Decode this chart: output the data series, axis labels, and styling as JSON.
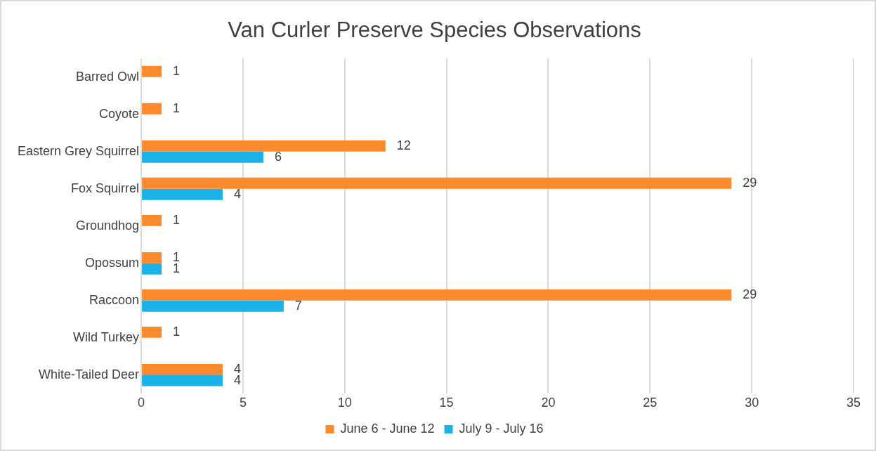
{
  "chart_data": {
    "type": "bar",
    "orientation": "horizontal",
    "title": "Van Curler Preserve Species Observations",
    "categories": [
      "Barred Owl",
      "Coyote",
      "Eastern Grey Squirrel",
      "Fox Squirrel",
      "Groundhog",
      "Opossum",
      "Raccoon",
      "Wild Turkey",
      "White-Tailed Deer"
    ],
    "series": [
      {
        "name": "June 6 - June 12",
        "color": "#fd8a2c",
        "values": [
          1,
          1,
          12,
          29,
          1,
          1,
          29,
          1,
          4
        ]
      },
      {
        "name": "July 9 - July 16",
        "color": "#1ab2e8",
        "values": [
          null,
          null,
          6,
          4,
          null,
          1,
          7,
          null,
          4
        ]
      }
    ],
    "xlim": [
      0,
      35
    ],
    "xticks": [
      0,
      5,
      10,
      15,
      20,
      25,
      30,
      35
    ],
    "grid": "x",
    "legend": "bottom",
    "data_labels": true
  }
}
